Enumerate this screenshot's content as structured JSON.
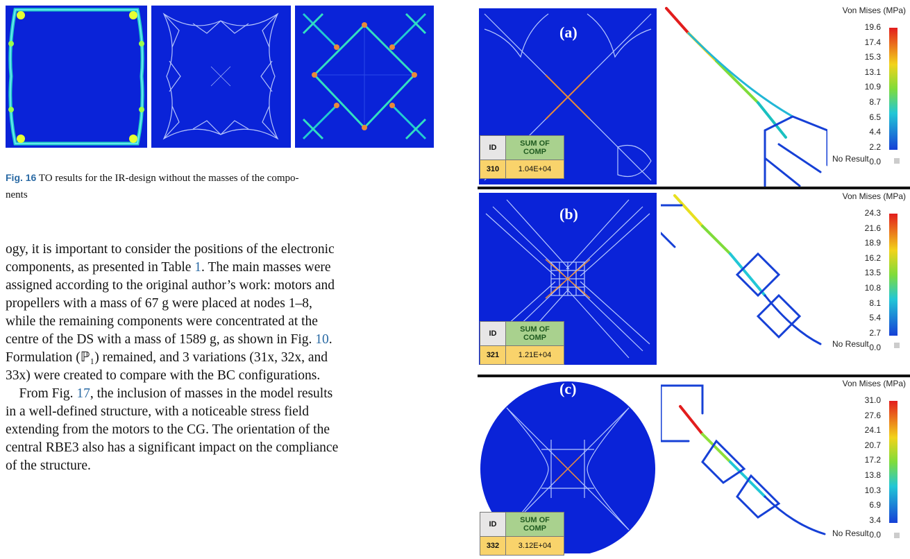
{
  "figure16": {
    "caption_label": "Fig. 16",
    "caption_text": "TO results for the IR-design without the masses of the compo-",
    "caption_text2": "nents"
  },
  "body": {
    "p1_l1": "ogy, it is important to consider the positions of the electronic",
    "p1_l2a": "components, as presented in Table ",
    "p1_ref1": "1",
    "p1_l2b": ". The main masses were",
    "p1_l3": "assigned according to the original author’s work: motors and",
    "p1_l4": "propellers with a mass of 67 g were placed at nodes 1–8,",
    "p1_l5": "while the remaining components were concentrated at the",
    "p1_l6a": "centre of the DS with a mass of 1589 g, as shown in Fig. ",
    "p1_ref2": "10",
    "p1_l6b": ".",
    "p1_l7": "Formulation (ℙ₁) remained, and 3 variations (31x, 32x, and",
    "p1_l8": "33x) were created to compare with the BC configurations.",
    "p2_l1a": "From Fig. ",
    "p2_ref": "17",
    "p2_l1b": ", the inclusion of masses in the model results",
    "p2_l2": "in a well-defined structure, with a noticeable stress field",
    "p2_l3": "extending from the motors to the CG. The orientation of the",
    "p2_l4": "central RBE3 also has a significant impact on the compliance",
    "p2_l5": "of the structure."
  },
  "figure17": {
    "legend_title": "Von Mises (MPa)",
    "no_result": "No Result",
    "id_header": "ID",
    "sum_header_1": "SUM OF",
    "sum_header_2": "COMP",
    "colors": {
      "panel_blue": "#0a23d8",
      "id_cell": "#f9d36b",
      "sum_cell": "#a9d18e",
      "id_head": "#e7e6e6"
    },
    "panels": [
      {
        "label": "(a)",
        "id": "310",
        "sum": "1.04E+04",
        "ticks": [
          "19.6",
          "17.4",
          "15.3",
          "13.1",
          "10.9",
          "8.7",
          "6.5",
          "4.4",
          "2.2",
          "0.0"
        ]
      },
      {
        "label": "(b)",
        "id": "321",
        "sum": "1.21E+04",
        "ticks": [
          "24.3",
          "21.6",
          "18.9",
          "16.2",
          "13.5",
          "10.8",
          "8.1",
          "5.4",
          "2.7",
          "0.0"
        ]
      },
      {
        "label": "(c)",
        "id": "332",
        "sum": "3.12E+04",
        "ticks": [
          "31.0",
          "27.6",
          "24.1",
          "20.7",
          "17.2",
          "13.8",
          "10.3",
          "6.9",
          "3.4",
          "0.0"
        ]
      }
    ]
  }
}
